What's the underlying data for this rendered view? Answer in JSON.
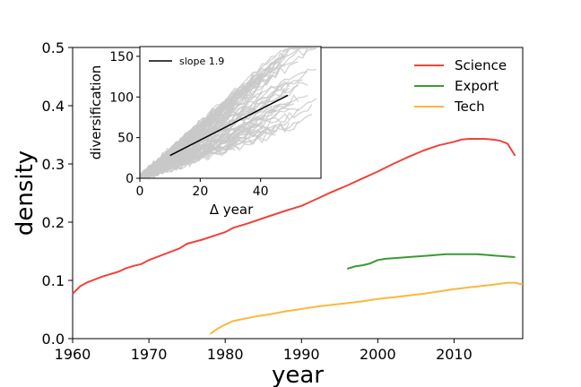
{
  "chart_data": [
    {
      "type": "line",
      "title": "",
      "xlabel": "year",
      "ylabel": "density",
      "xlim": [
        1960,
        2019
      ],
      "ylim": [
        0,
        0.5
      ],
      "xticks": [
        1960,
        1970,
        1980,
        1990,
        2000,
        2010
      ],
      "yticks": [
        0.0,
        0.1,
        0.2,
        0.3,
        0.4,
        0.5
      ],
      "legend_position": "top-right",
      "grid": false,
      "series": [
        {
          "name": "Science",
          "color": "#f0433a",
          "x": [
            1960,
            1961,
            1962,
            1964,
            1966,
            1967,
            1968,
            1969,
            1970,
            1972,
            1974,
            1975,
            1977,
            1980,
            1981,
            1983,
            1985,
            1988,
            1990,
            1992,
            1994,
            1996,
            1998,
            2000,
            2002,
            2004,
            2006,
            2008,
            2010,
            2011,
            2012,
            2013,
            2014,
            2015,
            2016,
            2017,
            2018
          ],
          "y": [
            0.077,
            0.09,
            0.097,
            0.107,
            0.115,
            0.121,
            0.125,
            0.128,
            0.135,
            0.145,
            0.155,
            0.163,
            0.17,
            0.183,
            0.19,
            0.198,
            0.207,
            0.22,
            0.228,
            0.24,
            0.252,
            0.263,
            0.275,
            0.287,
            0.3,
            0.312,
            0.323,
            0.332,
            0.338,
            0.342,
            0.343,
            0.343,
            0.343,
            0.342,
            0.34,
            0.335,
            0.314
          ]
        },
        {
          "name": "Export",
          "color": "#3b9a33",
          "x": [
            1996,
            1997,
            1998,
            1999,
            2000,
            2001,
            2002,
            2003,
            2004,
            2005,
            2006,
            2007,
            2008,
            2009,
            2010,
            2011,
            2012,
            2013,
            2014,
            2015,
            2016,
            2017,
            2018
          ],
          "y": [
            0.12,
            0.124,
            0.126,
            0.129,
            0.135,
            0.137,
            0.138,
            0.139,
            0.14,
            0.141,
            0.142,
            0.143,
            0.144,
            0.145,
            0.145,
            0.145,
            0.145,
            0.145,
            0.144,
            0.143,
            0.142,
            0.141,
            0.14
          ]
        },
        {
          "name": "Tech",
          "color": "#fbb73d",
          "x": [
            1978,
            1979,
            1980,
            1981,
            1982,
            1984,
            1986,
            1988,
            1990,
            1992,
            1994,
            1996,
            1998,
            2000,
            2002,
            2004,
            2006,
            2008,
            2010,
            2012,
            2014,
            2016,
            2017,
            2018,
            2019
          ],
          "y": [
            0.008,
            0.017,
            0.024,
            0.03,
            0.033,
            0.038,
            0.042,
            0.047,
            0.051,
            0.055,
            0.058,
            0.061,
            0.064,
            0.068,
            0.071,
            0.074,
            0.077,
            0.081,
            0.085,
            0.088,
            0.091,
            0.094,
            0.096,
            0.096,
            0.093
          ]
        }
      ]
    },
    {
      "type": "line",
      "title": "",
      "xlabel": "Δ year",
      "ylabel": "diversification",
      "xlim": [
        0,
        60
      ],
      "ylim": [
        0,
        162
      ],
      "xticks": [
        0,
        20,
        40
      ],
      "yticks": [
        0,
        50,
        100,
        150
      ],
      "legend_position": "top-left",
      "grid": false,
      "background_curves": {
        "color": "#c8c8c8",
        "count": 120,
        "description_shown": "grey individual trajectories"
      },
      "series": [
        {
          "name": "slope 1.9",
          "color": "#000000",
          "x": [
            10,
            49
          ],
          "y": [
            28,
            102
          ]
        }
      ]
    }
  ]
}
